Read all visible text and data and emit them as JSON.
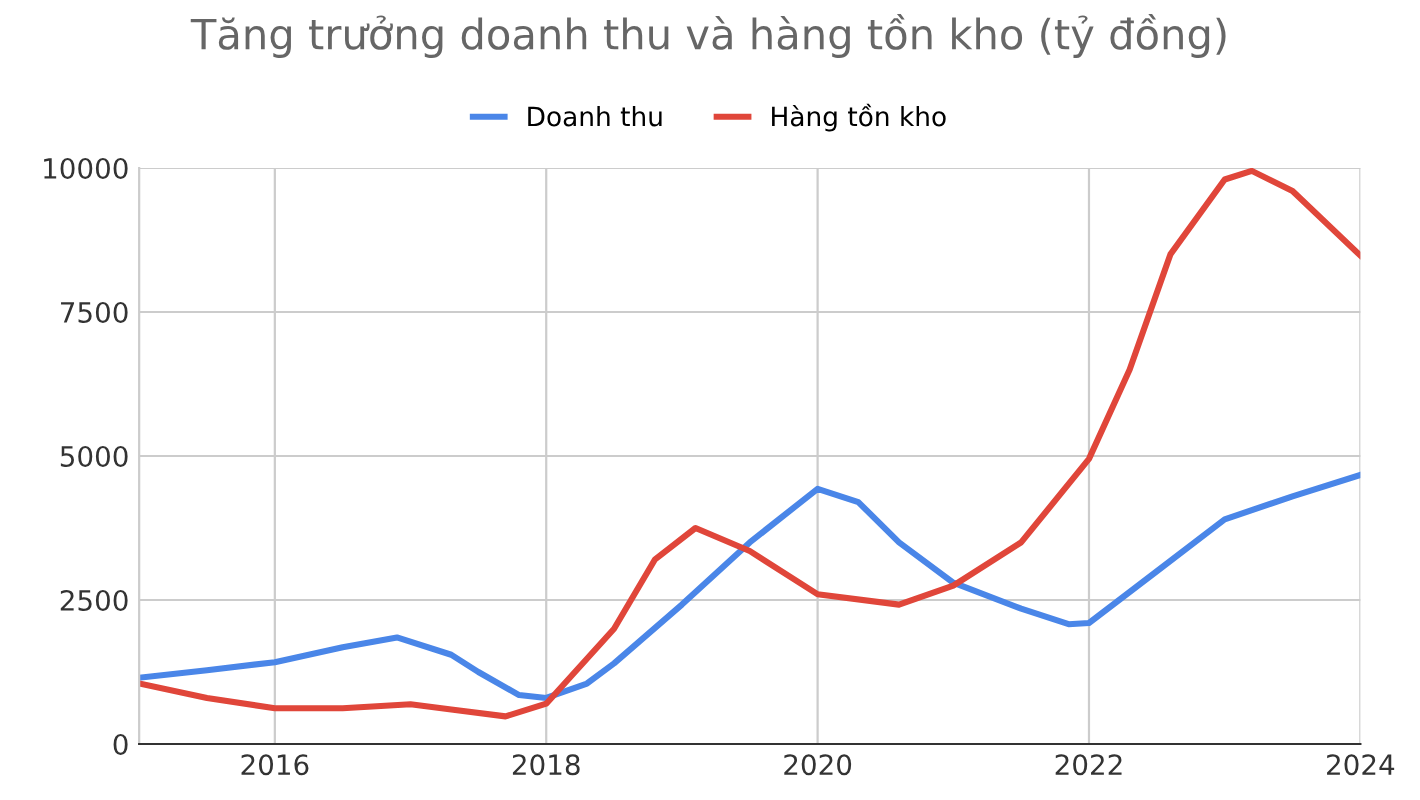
{
  "chart_data": {
    "type": "line",
    "title": "Tăng trưởng doanh thu và hàng tồn kho (tỷ đồng)",
    "series": [
      {
        "name": "Doanh thu",
        "color": "#4a86e8",
        "x": [
          2015,
          2015.5,
          2016,
          2016.5,
          2016.9,
          2017.3,
          2017.5,
          2017.8,
          2018,
          2018.3,
          2018.5,
          2019,
          2019.5,
          2020,
          2020.3,
          2020.6,
          2021,
          2021.5,
          2021.85,
          2022,
          2022.5,
          2023,
          2023.5,
          2024
        ],
        "values": [
          1150,
          1280,
          1420,
          1680,
          1850,
          1550,
          1250,
          850,
          800,
          1050,
          1400,
          2420,
          3500,
          4430,
          4200,
          3500,
          2800,
          2350,
          2080,
          2100,
          3000,
          3900,
          4300,
          4670
        ]
      },
      {
        "name": "Hàng tồn kho",
        "color": "#e0463a",
        "x": [
          2015,
          2015.5,
          2016,
          2016.5,
          2017,
          2017.3,
          2017.7,
          2018,
          2018.5,
          2018.8,
          2019.1,
          2019.5,
          2020,
          2020.6,
          2021,
          2021.5,
          2022,
          2022.3,
          2022.6,
          2023,
          2023.2,
          2023.5,
          2024
        ],
        "values": [
          1050,
          800,
          620,
          620,
          690,
          600,
          480,
          700,
          2000,
          3200,
          3750,
          3350,
          2600,
          2420,
          2750,
          3500,
          4950,
          6500,
          8500,
          9800,
          9950,
          9600,
          8480
        ]
      }
    ],
    "xlim": [
      2015,
      2024
    ],
    "xticks": [
      2016,
      2018,
      2020,
      2022,
      2024
    ],
    "ylim": [
      0,
      10000
    ],
    "yticks": [
      0,
      2500,
      5000,
      7500,
      10000
    ],
    "grid": true,
    "legend": "top",
    "marker": "none",
    "line_style": "solid"
  }
}
